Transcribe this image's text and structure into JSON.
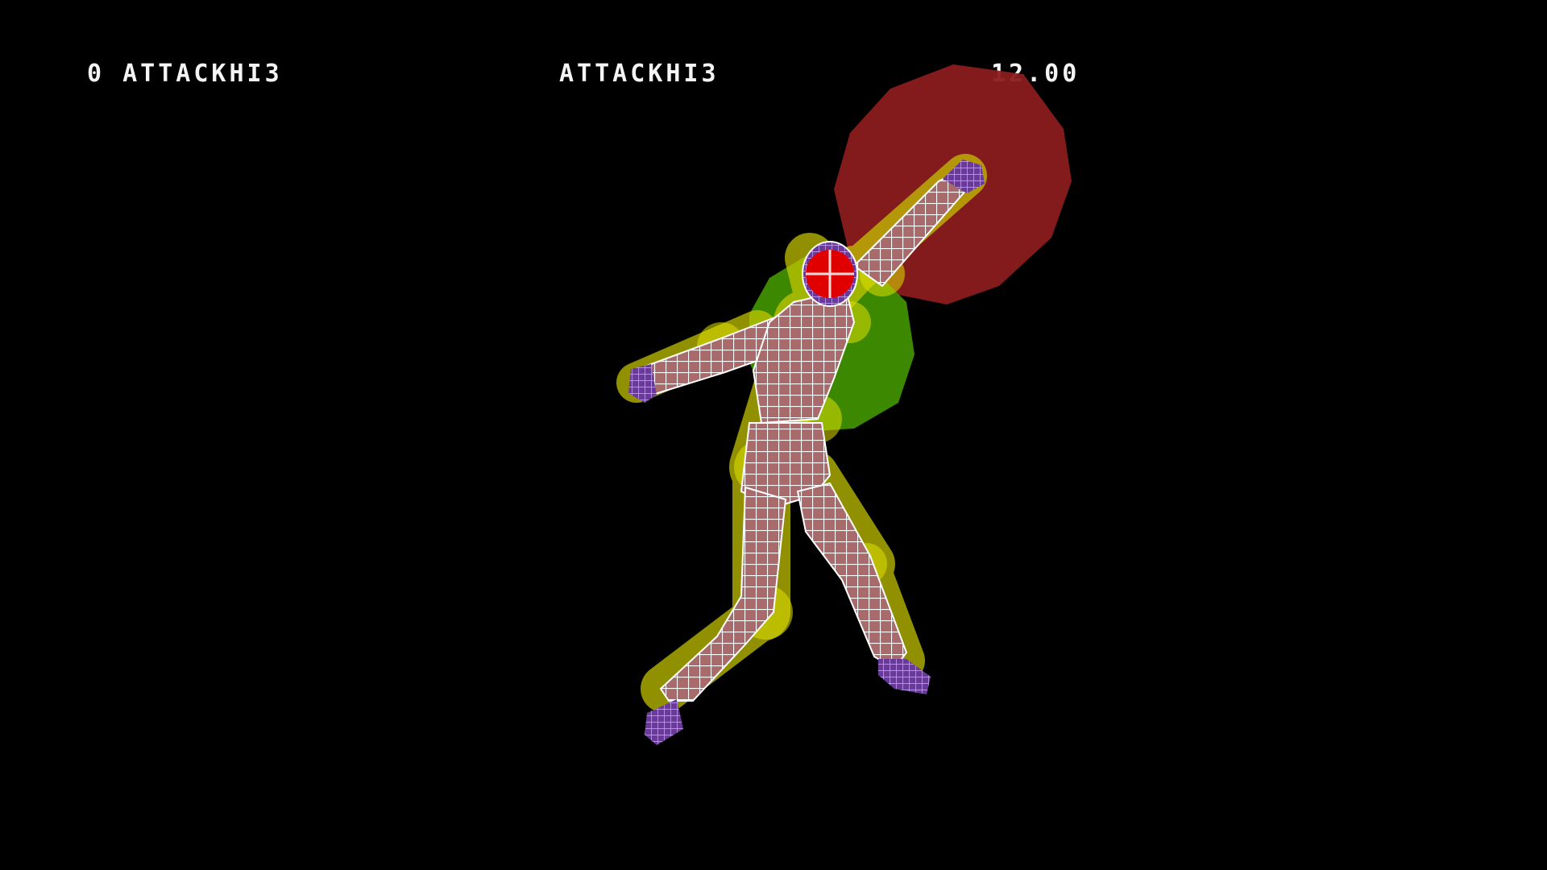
{
  "hud": {
    "frame_label": "0 ATTACKHI3",
    "animation_name": "ATTACKHI3",
    "frame_time": "12.00"
  },
  "colors": {
    "background": "#000000",
    "hud_text": "#f4f4f4",
    "hitbox": "#8a1c1f",
    "hurtbox_capsule": "#d8d800",
    "hurtbox_body": "#3f8f00",
    "wireframe": "#ffffff",
    "mesh_skin": "#a86a6a",
    "mesh_detail": "#b884ff",
    "head_marker": "#e00000"
  }
}
